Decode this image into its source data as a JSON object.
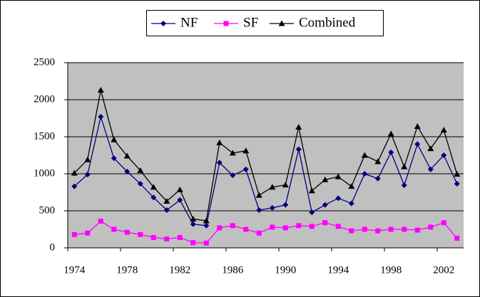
{
  "chart_data": {
    "type": "line",
    "categories": [
      "1974",
      null,
      null,
      null,
      "1978",
      null,
      null,
      null,
      "1982",
      null,
      null,
      null,
      "1986",
      null,
      null,
      null,
      "1990",
      null,
      null,
      null,
      "1994",
      null,
      null,
      null,
      "1998",
      null,
      null,
      null,
      "2002",
      null
    ],
    "series": [
      {
        "name": "NF",
        "color": "#000080",
        "marker": "diamond",
        "values": [
          830,
          990,
          1770,
          1210,
          1030,
          865,
          680,
          510,
          645,
          320,
          300,
          1150,
          980,
          1060,
          510,
          540,
          580,
          1330,
          480,
          580,
          670,
          600,
          1000,
          935,
          1290,
          845,
          1400,
          1060,
          1250,
          865
        ]
      },
      {
        "name": "SF",
        "color": "#ff00ff",
        "marker": "square",
        "values": [
          180,
          200,
          360,
          250,
          210,
          180,
          140,
          120,
          140,
          70,
          65,
          270,
          300,
          250,
          200,
          280,
          270,
          300,
          290,
          340,
          290,
          230,
          250,
          230,
          250,
          250,
          240,
          280,
          340,
          130
        ]
      },
      {
        "name": "Combined",
        "color": "#000000",
        "marker": "triangle",
        "values": [
          1010,
          1190,
          2130,
          1460,
          1240,
          1045,
          820,
          630,
          785,
          390,
          365,
          1420,
          1280,
          1310,
          710,
          820,
          850,
          1630,
          770,
          920,
          960,
          830,
          1250,
          1165,
          1540,
          1095,
          1640,
          1340,
          1590,
          995
        ]
      }
    ],
    "ylim": [
      0,
      2500
    ],
    "yticks": [
      0,
      500,
      1000,
      1500,
      2000,
      2500
    ],
    "grid": true,
    "legend": "top",
    "plot_background": "#c0c0c0"
  }
}
